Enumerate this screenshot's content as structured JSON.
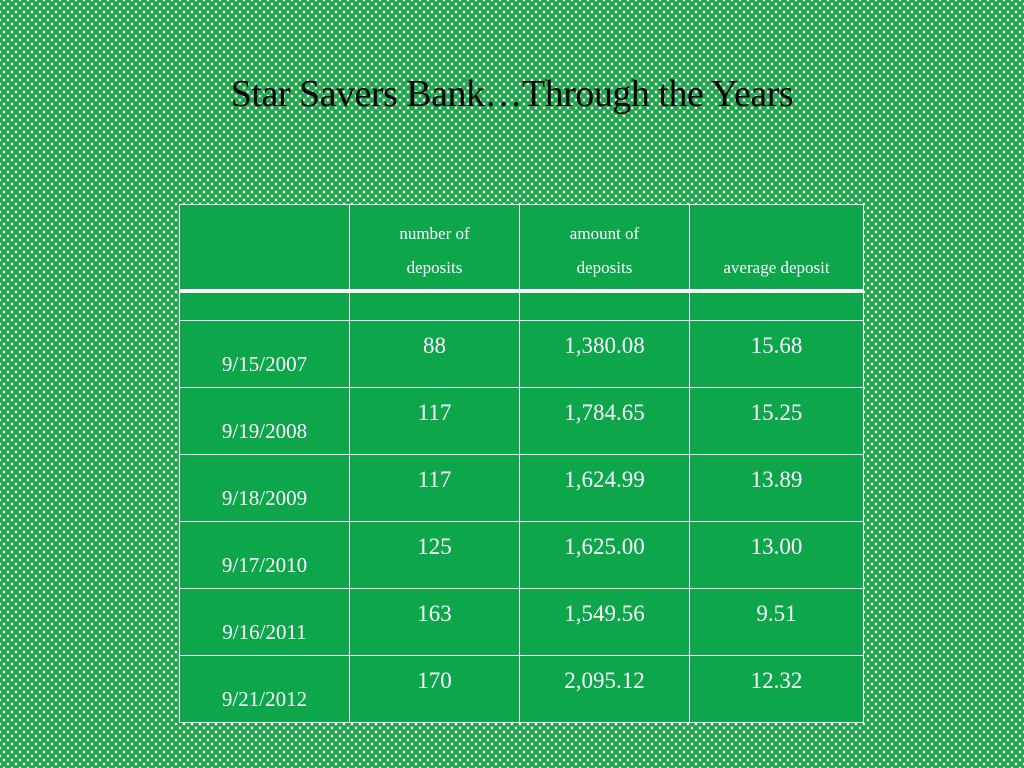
{
  "slide": {
    "title": "Star Savers Bank…Through the Years"
  },
  "table": {
    "headers": [
      "",
      "number of deposits",
      "amount of deposits",
      "average deposit"
    ],
    "header_lines": [
      [
        "",
        ""
      ],
      [
        "number of",
        "deposits"
      ],
      [
        "amount of",
        "deposits"
      ],
      [
        "",
        "average deposit"
      ]
    ],
    "rows": [
      {
        "date": "9/15/2007",
        "number": "88",
        "amount": "1,380.08",
        "average": "15.68"
      },
      {
        "date": "9/19/2008",
        "number": "117",
        "amount": "1,784.65",
        "average": "15.25"
      },
      {
        "date": "9/18/2009",
        "number": "117",
        "amount": "1,624.99",
        "average": "13.89"
      },
      {
        "date": "9/17/2010",
        "number": "125",
        "amount": "1,625.00",
        "average": "13.00"
      },
      {
        "date": "9/16/2011",
        "number": "163",
        "amount": "1,549.56",
        "average": "9.51"
      },
      {
        "date": "9/21/2012",
        "number": "170",
        "amount": "2,095.12",
        "average": "12.32"
      }
    ]
  },
  "colors": {
    "cell_green": "#0ea64b",
    "dot_green": "#1ea64a",
    "text_on_green": "#ffffff"
  }
}
